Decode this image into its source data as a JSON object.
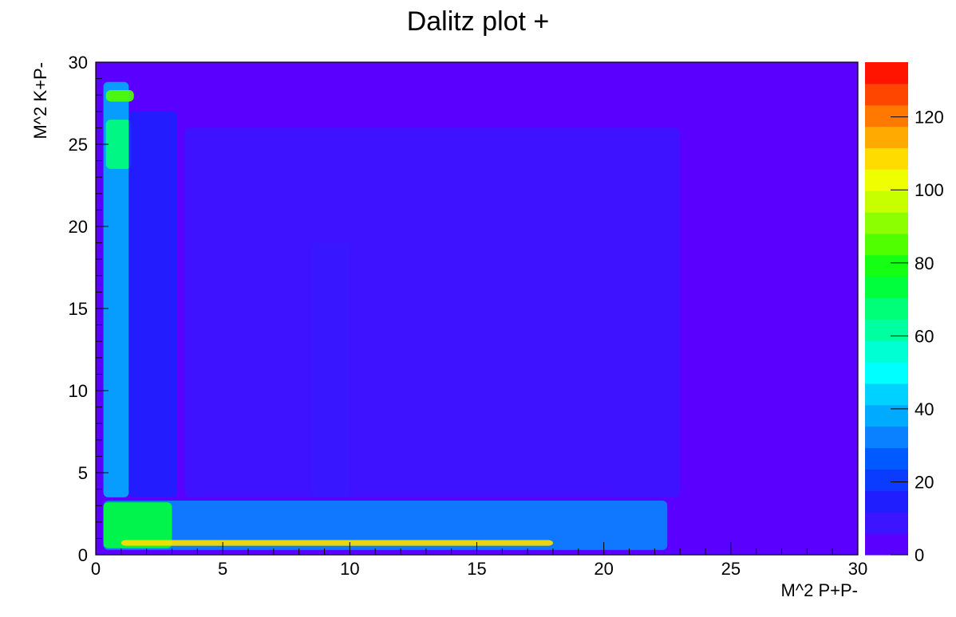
{
  "chart_data": {
    "type": "heatmap",
    "title": "Dalitz plot +",
    "xlabel": "M^2 P+P-",
    "ylabel": "M^2 K+P-",
    "xlim": [
      0,
      30
    ],
    "ylim": [
      0,
      30
    ],
    "x_ticks": [
      "0",
      "5",
      "10",
      "15",
      "20",
      "25",
      "30"
    ],
    "y_ticks": [
      "0",
      "5",
      "10",
      "15",
      "20",
      "25",
      "30"
    ],
    "z_range": [
      0,
      135
    ],
    "z_ticks": [
      "0",
      "20",
      "40",
      "60",
      "80",
      "100",
      "120"
    ],
    "palette": [
      "#5a00ff",
      "#3c14ff",
      "#1e1eff",
      "#0a3cff",
      "#005aff",
      "#0a82ff",
      "#00aaff",
      "#00d2ff",
      "#00ffff",
      "#00ffd2",
      "#00ffa0",
      "#00ff78",
      "#00ff3c",
      "#14ff14",
      "#50ff00",
      "#8cff00",
      "#c8ff00",
      "#f0ff00",
      "#ffdc00",
      "#ffaa00",
      "#ff7800",
      "#ff4600",
      "#ff1400"
    ],
    "background_color": "#5a00ff",
    "grid": false,
    "regions": [
      {
        "name": "kplus-band",
        "x": [
          0.3,
          1.3
        ],
        "y": [
          3.5,
          28.8
        ],
        "z": 38
      },
      {
        "name": "kplus-hot-top",
        "x": [
          0.4,
          1.5
        ],
        "y": [
          27.6,
          28.3
        ],
        "z": 85
      },
      {
        "name": "kplus-hot-upper",
        "x": [
          0.4,
          1.4
        ],
        "y": [
          23.5,
          26.5
        ],
        "z": 70
      },
      {
        "name": "pipi-band",
        "x": [
          0.3,
          22.5
        ],
        "y": [
          0.3,
          3.3
        ],
        "z": 30
      },
      {
        "name": "pipi-hot-corner",
        "x": [
          0.3,
          3.0
        ],
        "y": [
          0.4,
          3.2
        ],
        "z": 72
      },
      {
        "name": "pipi-hot-ridge",
        "x": [
          1.0,
          18.0
        ],
        "y": [
          0.55,
          0.9
        ],
        "z": 110
      },
      {
        "name": "rho-band",
        "x": [
          8.5,
          10.0
        ],
        "y": [
          3.5,
          19.0
        ],
        "z": 18
      },
      {
        "name": "mid-band",
        "x": [
          1.3,
          3.2
        ],
        "y": [
          3.5,
          27.0
        ],
        "z": 15
      },
      {
        "name": "diffuse-triangle",
        "x": [
          3.5,
          23.0
        ],
        "y": [
          3.5,
          26.0
        ],
        "z": 8
      }
    ]
  }
}
